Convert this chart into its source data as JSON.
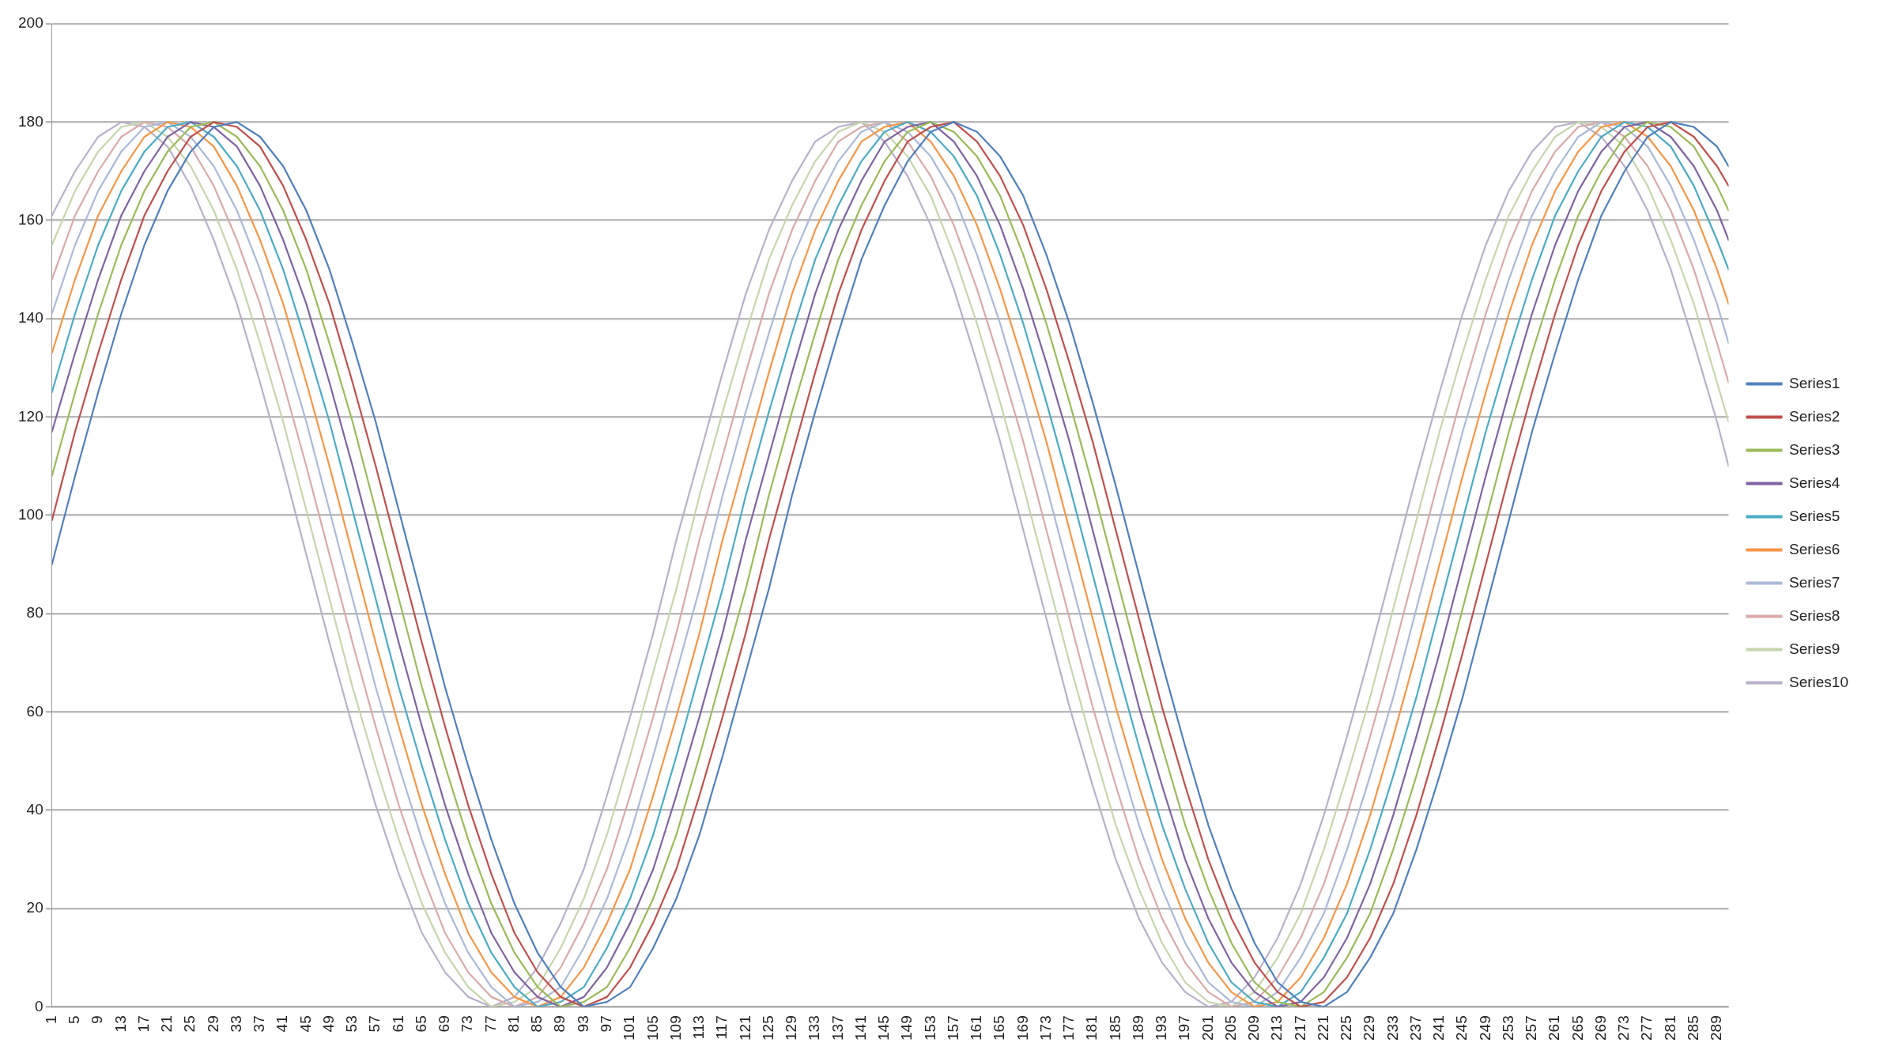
{
  "chart_data": {
    "type": "line",
    "legend": "right",
    "grid": "y",
    "marker": "none",
    "line_style": "solid",
    "x": [
      1,
      5,
      9,
      13,
      17,
      21,
      25,
      29,
      33,
      37,
      41,
      45,
      49,
      53,
      57,
      61,
      65,
      69,
      73,
      77,
      81,
      85,
      89,
      93,
      97,
      101,
      105,
      109,
      113,
      117,
      121,
      125,
      129,
      133,
      137,
      141,
      145,
      149,
      153,
      157,
      161,
      165,
      169,
      173,
      177,
      181,
      185,
      189,
      193,
      197,
      201,
      205,
      209,
      213,
      217,
      221,
      225,
      229,
      233,
      237,
      241,
      245,
      249,
      253,
      257,
      261,
      265,
      269,
      273,
      277,
      281,
      285,
      289,
      291
    ],
    "xlim": [
      1,
      291
    ],
    "xticks": [
      1,
      5,
      9,
      13,
      17,
      21,
      25,
      29,
      33,
      37,
      41,
      45,
      49,
      53,
      57,
      61,
      65,
      69,
      73,
      77,
      81,
      85,
      89,
      93,
      97,
      101,
      105,
      109,
      113,
      117,
      121,
      125,
      129,
      133,
      137,
      141,
      145,
      149,
      153,
      157,
      161,
      165,
      169,
      173,
      177,
      181,
      185,
      189,
      193,
      197,
      201,
      205,
      209,
      213,
      217,
      221,
      225,
      229,
      233,
      237,
      241,
      245,
      249,
      253,
      257,
      261,
      265,
      269,
      273,
      277,
      281,
      285,
      289
    ],
    "ylim": [
      0,
      200
    ],
    "yticks": [
      0,
      20,
      40,
      60,
      80,
      100,
      120,
      140,
      160,
      180,
      200
    ],
    "series": [
      {
        "name": "Series1",
        "color": "#4f81bd",
        "values": [
          90,
          108,
          125,
          141,
          155,
          166,
          174,
          179,
          180,
          177,
          171,
          162,
          150,
          135,
          119,
          101,
          83,
          65,
          49,
          34,
          21,
          11,
          4,
          0,
          1,
          4,
          12,
          22,
          35,
          51,
          68,
          85,
          104,
          121,
          137,
          152,
          163,
          172,
          178,
          180,
          178,
          173,
          165,
          153,
          139,
          123,
          106,
          88,
          70,
          53,
          37,
          24,
          13,
          5,
          1,
          0,
          3,
          10,
          19,
          32,
          47,
          63,
          81,
          99,
          117,
          133,
          148,
          161,
          170,
          177,
          180,
          179,
          175,
          171
        ]
      },
      {
        "name": "Series2",
        "color": "#c0504d",
        "values": [
          99,
          117,
          133,
          148,
          161,
          170,
          177,
          180,
          179,
          175,
          167,
          156,
          143,
          127,
          110,
          92,
          74,
          57,
          41,
          27,
          15,
          7,
          2,
          0,
          2,
          8,
          17,
          28,
          43,
          59,
          76,
          95,
          112,
          129,
          145,
          158,
          168,
          176,
          179,
          180,
          176,
          169,
          159,
          146,
          131,
          115,
          97,
          79,
          61,
          45,
          30,
          18,
          9,
          3,
          0,
          1,
          6,
          14,
          25,
          39,
          55,
          72,
          90,
          108,
          125,
          141,
          155,
          166,
          174,
          179,
          180,
          177,
          171,
          167
        ]
      },
      {
        "name": "Series3",
        "color": "#9bbb59",
        "values": [
          108,
          125,
          141,
          155,
          166,
          174,
          179,
          180,
          177,
          171,
          162,
          150,
          135,
          119,
          101,
          83,
          65,
          49,
          34,
          21,
          11,
          4,
          0,
          1,
          4,
          12,
          22,
          35,
          51,
          68,
          85,
          104,
          121,
          137,
          152,
          163,
          172,
          178,
          180,
          178,
          173,
          165,
          153,
          139,
          123,
          106,
          88,
          70,
          53,
          37,
          24,
          13,
          5,
          1,
          0,
          3,
          10,
          19,
          32,
          47,
          63,
          81,
          99,
          117,
          133,
          148,
          161,
          170,
          177,
          180,
          179,
          175,
          167,
          162
        ]
      },
      {
        "name": "Series4",
        "color": "#8064a2",
        "values": [
          117,
          133,
          148,
          161,
          170,
          177,
          180,
          179,
          175,
          167,
          156,
          143,
          127,
          110,
          92,
          74,
          57,
          41,
          27,
          15,
          7,
          2,
          0,
          2,
          8,
          17,
          28,
          43,
          59,
          76,
          95,
          112,
          129,
          145,
          158,
          168,
          176,
          179,
          180,
          176,
          169,
          159,
          146,
          131,
          115,
          97,
          79,
          61,
          45,
          30,
          18,
          9,
          3,
          0,
          1,
          6,
          14,
          25,
          39,
          55,
          72,
          90,
          108,
          125,
          141,
          155,
          166,
          174,
          179,
          180,
          177,
          171,
          162,
          156
        ]
      },
      {
        "name": "Series5",
        "color": "#4bacc6",
        "values": [
          125,
          141,
          155,
          166,
          174,
          179,
          180,
          177,
          171,
          162,
          150,
          135,
          119,
          101,
          83,
          65,
          49,
          34,
          21,
          11,
          4,
          0,
          1,
          4,
          12,
          22,
          35,
          51,
          68,
          85,
          104,
          121,
          137,
          152,
          163,
          172,
          178,
          180,
          178,
          173,
          165,
          153,
          139,
          123,
          106,
          88,
          70,
          53,
          37,
          24,
          13,
          5,
          1,
          0,
          3,
          10,
          19,
          32,
          47,
          63,
          81,
          99,
          117,
          133,
          148,
          161,
          170,
          177,
          180,
          179,
          175,
          167,
          156,
          150
        ]
      },
      {
        "name": "Series6",
        "color": "#f79646",
        "values": [
          133,
          148,
          161,
          170,
          177,
          180,
          179,
          175,
          167,
          156,
          143,
          127,
          110,
          92,
          74,
          57,
          41,
          27,
          15,
          7,
          2,
          0,
          2,
          8,
          17,
          28,
          43,
          59,
          76,
          95,
          112,
          129,
          145,
          158,
          168,
          176,
          179,
          180,
          176,
          169,
          159,
          146,
          131,
          115,
          97,
          79,
          61,
          45,
          30,
          18,
          9,
          3,
          0,
          1,
          6,
          14,
          25,
          39,
          55,
          72,
          90,
          108,
          125,
          141,
          155,
          166,
          174,
          179,
          180,
          177,
          171,
          162,
          150,
          143
        ]
      },
      {
        "name": "Series7",
        "color": "#aabad7",
        "values": [
          141,
          155,
          166,
          174,
          179,
          180,
          177,
          171,
          162,
          150,
          135,
          119,
          101,
          83,
          65,
          49,
          34,
          21,
          11,
          4,
          0,
          1,
          4,
          12,
          22,
          35,
          51,
          68,
          85,
          104,
          121,
          137,
          152,
          163,
          172,
          178,
          180,
          178,
          173,
          165,
          153,
          139,
          123,
          106,
          88,
          70,
          53,
          37,
          24,
          13,
          5,
          1,
          0,
          3,
          10,
          19,
          32,
          47,
          63,
          81,
          99,
          117,
          133,
          148,
          161,
          170,
          177,
          180,
          179,
          175,
          167,
          156,
          143,
          135
        ]
      },
      {
        "name": "Series8",
        "color": "#d9aaa9",
        "values": [
          148,
          161,
          170,
          177,
          180,
          179,
          175,
          167,
          156,
          143,
          127,
          110,
          92,
          74,
          57,
          41,
          27,
          15,
          7,
          2,
          0,
          2,
          8,
          17,
          28,
          43,
          59,
          76,
          95,
          112,
          129,
          145,
          158,
          168,
          176,
          179,
          180,
          176,
          169,
          159,
          146,
          131,
          115,
          97,
          79,
          61,
          45,
          30,
          18,
          9,
          3,
          0,
          1,
          6,
          14,
          25,
          39,
          55,
          72,
          90,
          108,
          125,
          141,
          155,
          166,
          174,
          179,
          180,
          177,
          171,
          162,
          150,
          135,
          127
        ]
      },
      {
        "name": "Series9",
        "color": "#c6d6ac",
        "values": [
          155,
          166,
          174,
          179,
          180,
          177,
          171,
          162,
          150,
          135,
          119,
          101,
          83,
          65,
          49,
          34,
          21,
          11,
          4,
          0,
          1,
          4,
          12,
          22,
          35,
          51,
          68,
          85,
          104,
          121,
          137,
          152,
          163,
          172,
          178,
          180,
          178,
          173,
          165,
          153,
          139,
          123,
          106,
          88,
          70,
          53,
          37,
          24,
          13,
          5,
          1,
          0,
          3,
          10,
          19,
          32,
          47,
          63,
          81,
          99,
          117,
          133,
          148,
          161,
          170,
          177,
          180,
          179,
          175,
          167,
          156,
          143,
          127,
          119
        ]
      },
      {
        "name": "Series10",
        "color": "#bab0c9",
        "values": [
          161,
          170,
          177,
          180,
          179,
          175,
          167,
          156,
          143,
          127,
          110,
          92,
          74,
          57,
          41,
          27,
          15,
          7,
          2,
          0,
          2,
          8,
          17,
          28,
          43,
          59,
          76,
          95,
          112,
          129,
          145,
          158,
          168,
          176,
          179,
          180,
          176,
          169,
          159,
          146,
          131,
          115,
          97,
          79,
          61,
          45,
          30,
          18,
          9,
          3,
          0,
          1,
          6,
          14,
          25,
          39,
          55,
          72,
          90,
          108,
          125,
          141,
          155,
          166,
          174,
          179,
          180,
          177,
          171,
          162,
          150,
          135,
          119,
          110
        ]
      }
    ]
  }
}
